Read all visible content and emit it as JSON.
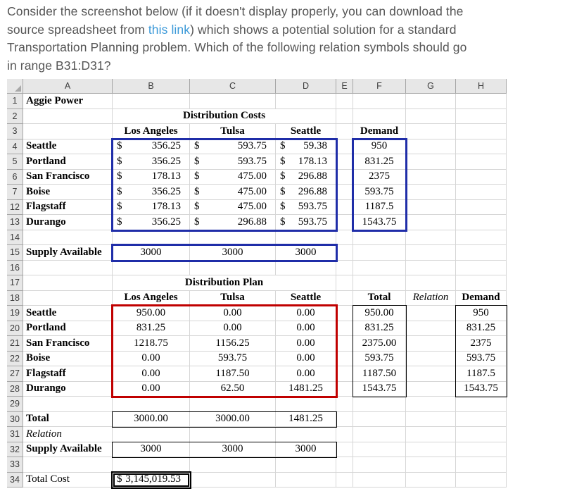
{
  "question": {
    "line1": "Consider the screenshot below (if it doesn't display properly, you can download the",
    "line2_before": "source spreadsheet from ",
    "link_text": "this link",
    "line2_after": ") which shows a potential solution for a standard",
    "line3": "Transportation Planning problem. Which of the following relation symbols should go",
    "line4": "in range B31:D31?"
  },
  "colors": {
    "question_text": "#565656",
    "link_blue": "#3b99d8",
    "grid_line": "#d6d6d6",
    "header_bg": "#e7e7e7",
    "header_border": "#a6a6a6",
    "range_blue": "#1f2da8",
    "range_red": "#c00000",
    "range_black": "#000000"
  },
  "spreadsheet": {
    "column_headers": [
      "A",
      "B",
      "C",
      "D",
      "E",
      "F",
      "G",
      "H"
    ],
    "rows": [
      {
        "n": "1",
        "cells": [
          {
            "col": "A",
            "t": "Aggie Power",
            "b": 1
          }
        ]
      },
      {
        "n": "2",
        "cells": [
          {
            "col": "B",
            "t": "Distribution Costs",
            "b": 1,
            "al": "c",
            "span": 3
          }
        ]
      },
      {
        "n": "3",
        "cells": [
          {
            "col": "B",
            "t": "Los Angeles",
            "b": 1,
            "al": "c"
          },
          {
            "col": "C",
            "t": "Tulsa",
            "b": 1,
            "al": "c"
          },
          {
            "col": "D",
            "t": "Seattle",
            "b": 1,
            "al": "c"
          },
          {
            "col": "F",
            "t": "Demand",
            "b": 1,
            "al": "c"
          }
        ]
      },
      {
        "n": "4",
        "cells": [
          {
            "col": "A",
            "t": "Seattle",
            "b": 1
          },
          {
            "col": "B",
            "fmt": "acct",
            "cur": "$",
            "t": "356.25"
          },
          {
            "col": "C",
            "fmt": "acct",
            "cur": "$",
            "t": "593.75"
          },
          {
            "col": "D",
            "fmt": "acct",
            "cur": "$",
            "t": "59.38"
          },
          {
            "col": "F",
            "t": "950",
            "al": "c"
          }
        ]
      },
      {
        "n": "5",
        "cells": [
          {
            "col": "A",
            "t": "Portland",
            "b": 1
          },
          {
            "col": "B",
            "fmt": "acct",
            "cur": "$",
            "t": "356.25"
          },
          {
            "col": "C",
            "fmt": "acct",
            "cur": "$",
            "t": "593.75"
          },
          {
            "col": "D",
            "fmt": "acct",
            "cur": "$",
            "t": "178.13"
          },
          {
            "col": "F",
            "t": "831.25",
            "al": "c"
          }
        ]
      },
      {
        "n": "6",
        "cells": [
          {
            "col": "A",
            "t": "San Francisco",
            "b": 1
          },
          {
            "col": "B",
            "fmt": "acct",
            "cur": "$",
            "t": "178.13"
          },
          {
            "col": "C",
            "fmt": "acct",
            "cur": "$",
            "t": "475.00"
          },
          {
            "col": "D",
            "fmt": "acct",
            "cur": "$",
            "t": "296.88"
          },
          {
            "col": "F",
            "t": "2375",
            "al": "c"
          }
        ]
      },
      {
        "n": "7",
        "cells": [
          {
            "col": "A",
            "t": "Boise",
            "b": 1
          },
          {
            "col": "B",
            "fmt": "acct",
            "cur": "$",
            "t": "356.25"
          },
          {
            "col": "C",
            "fmt": "acct",
            "cur": "$",
            "t": "475.00"
          },
          {
            "col": "D",
            "fmt": "acct",
            "cur": "$",
            "t": "296.88"
          },
          {
            "col": "F",
            "t": "593.75",
            "al": "c"
          }
        ]
      },
      {
        "n": "12",
        "cells": [
          {
            "col": "A",
            "t": "Flagstaff",
            "b": 1
          },
          {
            "col": "B",
            "fmt": "acct",
            "cur": "$",
            "t": "178.13"
          },
          {
            "col": "C",
            "fmt": "acct",
            "cur": "$",
            "t": "475.00"
          },
          {
            "col": "D",
            "fmt": "acct",
            "cur": "$",
            "t": "593.75"
          },
          {
            "col": "F",
            "t": "1187.5",
            "al": "c"
          }
        ]
      },
      {
        "n": "13",
        "cells": [
          {
            "col": "A",
            "t": "Durango",
            "b": 1
          },
          {
            "col": "B",
            "fmt": "acct",
            "cur": "$",
            "t": "356.25"
          },
          {
            "col": "C",
            "fmt": "acct",
            "cur": "$",
            "t": "296.88"
          },
          {
            "col": "D",
            "fmt": "acct",
            "cur": "$",
            "t": "593.75"
          },
          {
            "col": "F",
            "t": "1543.75",
            "al": "c"
          }
        ]
      },
      {
        "n": "14",
        "cells": []
      },
      {
        "n": "15",
        "cells": [
          {
            "col": "A",
            "t": "Supply Available",
            "b": 1
          },
          {
            "col": "B",
            "t": "3000",
            "al": "c"
          },
          {
            "col": "C",
            "t": "3000",
            "al": "c"
          },
          {
            "col": "D",
            "t": "3000",
            "al": "c"
          }
        ]
      },
      {
        "n": "16",
        "cells": []
      },
      {
        "n": "17",
        "cells": [
          {
            "col": "B",
            "t": "Distribution Plan",
            "b": 1,
            "al": "c",
            "span": 3
          }
        ]
      },
      {
        "n": "18",
        "cells": [
          {
            "col": "B",
            "t": "Los Angeles",
            "b": 1,
            "al": "c"
          },
          {
            "col": "C",
            "t": "Tulsa",
            "b": 1,
            "al": "c"
          },
          {
            "col": "D",
            "t": "Seattle",
            "b": 1,
            "al": "c"
          },
          {
            "col": "F",
            "t": "Total",
            "b": 1,
            "al": "c"
          },
          {
            "col": "G",
            "t": "Relation",
            "i": 1,
            "al": "c"
          },
          {
            "col": "H",
            "t": "Demand",
            "b": 1,
            "al": "c"
          }
        ]
      },
      {
        "n": "19",
        "cells": [
          {
            "col": "A",
            "t": "Seattle",
            "b": 1
          },
          {
            "col": "B",
            "t": "950.00",
            "al": "c"
          },
          {
            "col": "C",
            "t": "0.00",
            "al": "c"
          },
          {
            "col": "D",
            "t": "0.00",
            "al": "c"
          },
          {
            "col": "F",
            "t": "950.00",
            "al": "c"
          },
          {
            "col": "H",
            "t": "950",
            "al": "c"
          }
        ]
      },
      {
        "n": "20",
        "cells": [
          {
            "col": "A",
            "t": "Portland",
            "b": 1
          },
          {
            "col": "B",
            "t": "831.25",
            "al": "c"
          },
          {
            "col": "C",
            "t": "0.00",
            "al": "c"
          },
          {
            "col": "D",
            "t": "0.00",
            "al": "c"
          },
          {
            "col": "F",
            "t": "831.25",
            "al": "c"
          },
          {
            "col": "H",
            "t": "831.25",
            "al": "c"
          }
        ]
      },
      {
        "n": "21",
        "cells": [
          {
            "col": "A",
            "t": "San Francisco",
            "b": 1
          },
          {
            "col": "B",
            "t": "1218.75",
            "al": "c"
          },
          {
            "col": "C",
            "t": "1156.25",
            "al": "c"
          },
          {
            "col": "D",
            "t": "0.00",
            "al": "c"
          },
          {
            "col": "F",
            "t": "2375.00",
            "al": "c"
          },
          {
            "col": "H",
            "t": "2375",
            "al": "c"
          }
        ]
      },
      {
        "n": "22",
        "cells": [
          {
            "col": "A",
            "t": "Boise",
            "b": 1
          },
          {
            "col": "B",
            "t": "0.00",
            "al": "c"
          },
          {
            "col": "C",
            "t": "593.75",
            "al": "c"
          },
          {
            "col": "D",
            "t": "0.00",
            "al": "c"
          },
          {
            "col": "F",
            "t": "593.75",
            "al": "c"
          },
          {
            "col": "H",
            "t": "593.75",
            "al": "c"
          }
        ]
      },
      {
        "n": "27",
        "cells": [
          {
            "col": "A",
            "t": "Flagstaff",
            "b": 1
          },
          {
            "col": "B",
            "t": "0.00",
            "al": "c"
          },
          {
            "col": "C",
            "t": "1187.50",
            "al": "c"
          },
          {
            "col": "D",
            "t": "0.00",
            "al": "c"
          },
          {
            "col": "F",
            "t": "1187.50",
            "al": "c"
          },
          {
            "col": "H",
            "t": "1187.5",
            "al": "c"
          }
        ]
      },
      {
        "n": "28",
        "cells": [
          {
            "col": "A",
            "t": "Durango",
            "b": 1
          },
          {
            "col": "B",
            "t": "0.00",
            "al": "c"
          },
          {
            "col": "C",
            "t": "62.50",
            "al": "c"
          },
          {
            "col": "D",
            "t": "1481.25",
            "al": "c"
          },
          {
            "col": "F",
            "t": "1543.75",
            "al": "c"
          },
          {
            "col": "H",
            "t": "1543.75",
            "al": "c"
          }
        ]
      },
      {
        "n": "29",
        "cells": []
      },
      {
        "n": "30",
        "cells": [
          {
            "col": "A",
            "t": "Total",
            "b": 1
          },
          {
            "col": "B",
            "t": "3000.00",
            "al": "c"
          },
          {
            "col": "C",
            "t": "3000.00",
            "al": "c"
          },
          {
            "col": "D",
            "t": "1481.25",
            "al": "c"
          }
        ]
      },
      {
        "n": "31",
        "cells": [
          {
            "col": "A",
            "t": "Relation",
            "i": 1
          }
        ]
      },
      {
        "n": "32",
        "cells": [
          {
            "col": "A",
            "t": "Supply Available",
            "b": 1
          },
          {
            "col": "B",
            "t": "3000",
            "al": "c"
          },
          {
            "col": "C",
            "t": "3000",
            "al": "c"
          },
          {
            "col": "D",
            "t": "3000",
            "al": "c"
          }
        ]
      },
      {
        "n": "33",
        "cells": []
      },
      {
        "n": "34",
        "cells": [
          {
            "col": "A",
            "t": "Total Cost"
          },
          {
            "col": "B",
            "fmt": "acct",
            "cur": "$",
            "t": "3,145,019.53"
          }
        ]
      }
    ],
    "highlight_boxes": [
      {
        "name": "costs-range-box",
        "range": "B4:D13",
        "style": "thick",
        "color": "blue"
      },
      {
        "name": "demand-range-box",
        "range": "F4:F13",
        "style": "thick",
        "color": "blue"
      },
      {
        "name": "supply-available-range-box",
        "range": "B15:D15",
        "style": "thick",
        "color": "blue"
      },
      {
        "name": "distribution-plan-range-box",
        "range": "B19:D28",
        "style": "thick",
        "color": "red"
      },
      {
        "name": "plan-total-range-box",
        "range": "F19:F28",
        "style": "thin",
        "color": "black"
      },
      {
        "name": "plan-demand-range-box",
        "range": "H19:H28",
        "style": "thin",
        "color": "black"
      },
      {
        "name": "column-total-range-box",
        "range": "B30:D30",
        "style": "thin",
        "color": "black"
      },
      {
        "name": "supply-available2-range-box",
        "range": "B32:D32",
        "style": "thin",
        "color": "black"
      },
      {
        "name": "total-cost-box",
        "range": "B34:B34",
        "style": "double",
        "color": "black"
      }
    ]
  }
}
